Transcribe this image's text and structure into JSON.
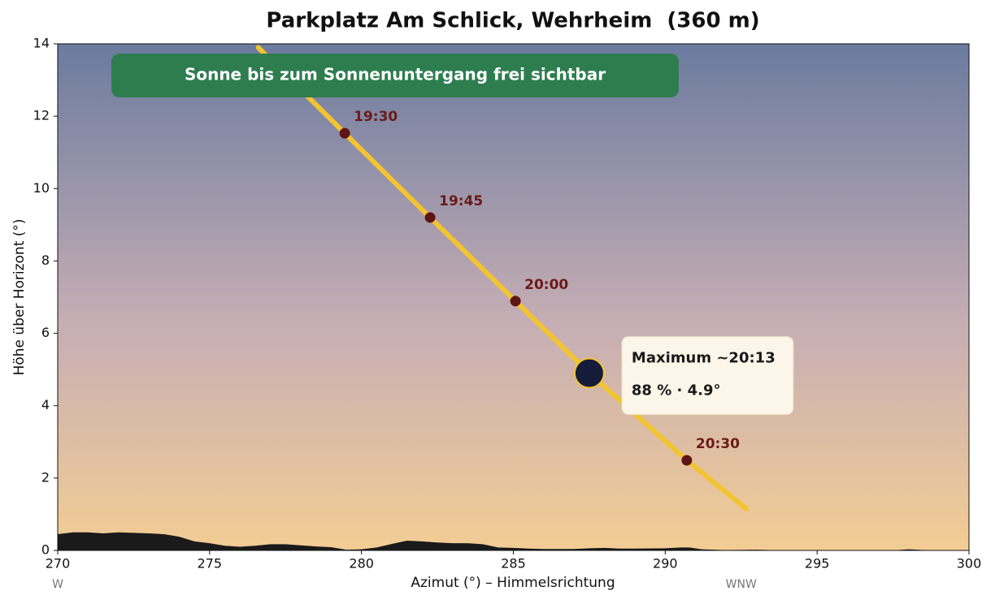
{
  "chart_data": {
    "type": "line",
    "title": "Parkplatz Am Schlick, Wehrheim  (360 m)",
    "xlabel": "Azimut (°)  –  Himmelsrichtung",
    "ylabel": "Höhe über Horizont (°)",
    "xlim": [
      270,
      300
    ],
    "ylim": [
      0,
      14
    ],
    "xticks": [
      270,
      275,
      280,
      285,
      290,
      295,
      300
    ],
    "yticks": [
      0,
      2,
      4,
      6,
      8,
      10,
      12,
      14
    ],
    "compass": [
      {
        "value": 270,
        "label": "W"
      },
      {
        "value": 292.5,
        "label": "WNW"
      }
    ],
    "horizon": {
      "color": "#1a1a1a",
      "x": [
        270,
        270.5,
        271,
        271.5,
        272,
        273,
        273.5,
        274,
        274.5,
        275,
        275.5,
        276,
        276.5,
        277,
        277.5,
        278,
        278.5,
        279,
        279.5,
        280,
        280.5,
        281,
        281.5,
        282,
        282.5,
        283,
        283.5,
        284,
        284.5,
        285,
        285.5,
        286,
        287,
        287.5,
        288,
        288.5,
        289,
        290,
        290.5,
        290.8,
        291.2,
        292,
        293,
        294,
        297.5,
        298,
        298.5,
        300
      ],
      "values": [
        0.45,
        0.5,
        0.5,
        0.47,
        0.5,
        0.47,
        0.45,
        0.38,
        0.25,
        0.2,
        0.13,
        0.1,
        0.13,
        0.17,
        0.17,
        0.14,
        0.11,
        0.09,
        0.02,
        0.03,
        0.08,
        0.18,
        0.27,
        0.25,
        0.22,
        0.2,
        0.2,
        0.17,
        0.08,
        0.07,
        0.05,
        0.04,
        0.04,
        0.06,
        0.07,
        0.05,
        0.05,
        0.06,
        0.08,
        0.08,
        0.03,
        0.01,
        0.02,
        0,
        0,
        0.03,
        0.01,
        0
      ]
    },
    "sun_path": {
      "color": "#f4c430",
      "x": [
        276.6,
        279.45,
        282.26,
        285.07,
        287.5,
        290.71,
        292.67
      ],
      "y": [
        13.9,
        11.53,
        9.2,
        6.89,
        4.9,
        2.49,
        1.15
      ]
    },
    "markers": {
      "color": "#5e1414",
      "x": [
        279.45,
        282.26,
        285.07,
        290.71
      ],
      "y": [
        11.53,
        9.2,
        6.89,
        2.49
      ],
      "labels": [
        "19:30",
        "19:45",
        "20:00",
        "20:30"
      ]
    },
    "maximum": {
      "color": "#141c3a",
      "x": 287.5,
      "y": 4.9,
      "annotation": [
        "Maximum ~20:13",
        "88 % · 4.9°"
      ]
    },
    "banner": {
      "text": "Sonne bis zum Sonnenuntergang frei sichtbar",
      "color": "#2e7d4f"
    }
  }
}
